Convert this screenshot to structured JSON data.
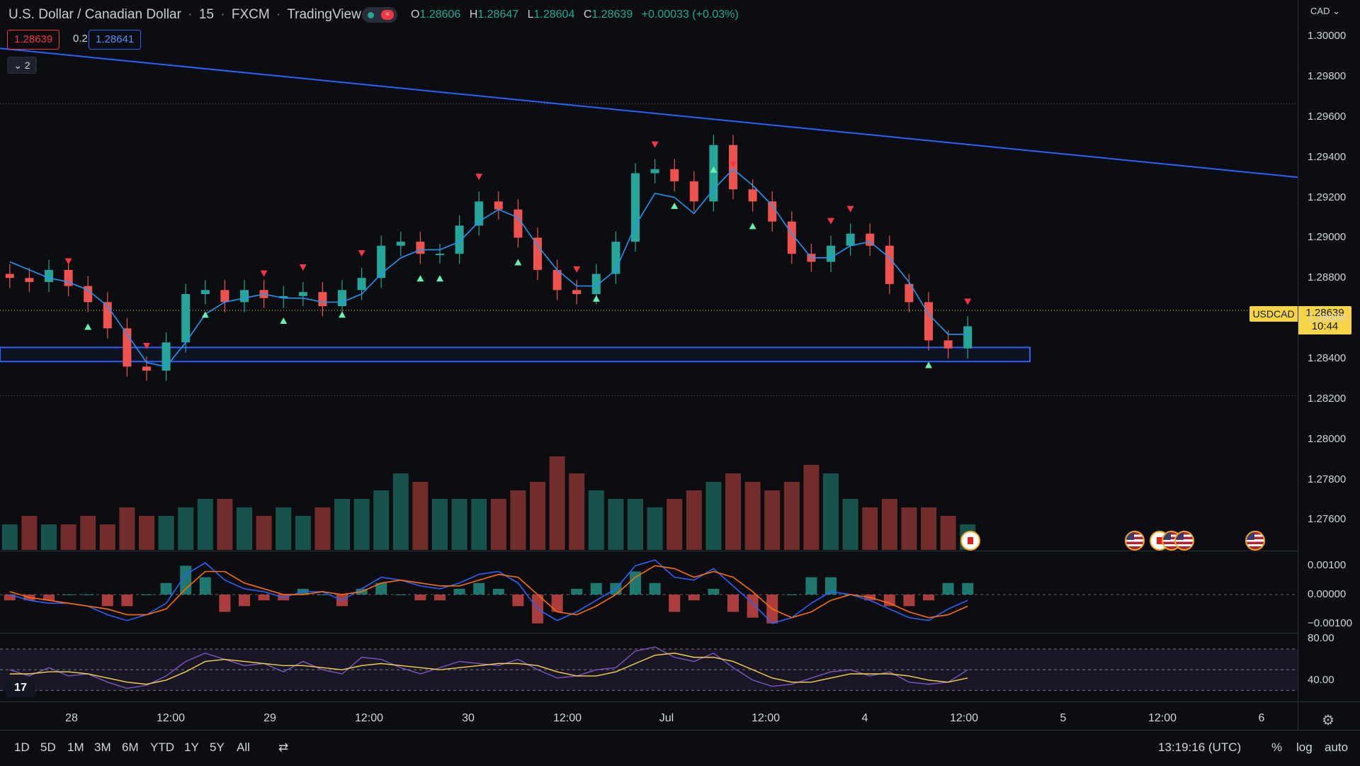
{
  "header": {
    "title": "U.S. Dollar / Canadian Dollar",
    "interval": "15",
    "exchange": "FXCM",
    "source": "TradingView",
    "ohlc": {
      "o_label": "O",
      "o": "1.28606",
      "h_label": "H",
      "h": "1.28647",
      "l_label": "L",
      "l": "1.28604",
      "c_label": "C",
      "c": "1.28639",
      "change": "+0.00033 (+0.03%)"
    },
    "sell_price": "1.28639",
    "spread": "0.2",
    "buy_price": "1.28641",
    "collapse_label": "2",
    "currency": "CAD"
  },
  "last_price": {
    "symbol": "USDCAD",
    "price": "1.28639",
    "countdown": "10:44"
  },
  "colors": {
    "up": "#26a69a",
    "down": "#ef5350",
    "ma": "#2196f3",
    "trendline": "#2962ff",
    "zone": "#2962ff",
    "macd": "#2962ff",
    "signal": "#ff6d00",
    "rsi": "#7e57c2",
    "rsi_ma": "#f5d547",
    "last_price": "#f5d547"
  },
  "chart_data": [
    {
      "type": "line",
      "title": "",
      "series": [
        {
          "y": [
            1.288,
            1.2878,
            1.2884,
            1.2876,
            1.2868,
            1.2855,
            1.2836,
            1.2834,
            1.2848,
            1.2872,
            1.2874,
            1.2868,
            1.2874,
            1.287,
            1.2871,
            1.2873,
            1.2866,
            1.2874,
            1.288,
            1.2896,
            1.2898,
            1.2892,
            1.2892,
            1.2906,
            1.2918,
            1.2914,
            1.29,
            1.2884,
            1.2874,
            1.2872,
            1.2882,
            1.2898,
            1.2932,
            1.2934,
            1.2928,
            1.2918,
            1.2946,
            1.2924,
            1.2918,
            1.2908,
            1.2892,
            1.2888,
            1.2896,
            1.2902,
            1.2896,
            1.2877,
            1.2868,
            1.2849,
            1.2845,
            1.2856
          ]
        },
        {
          "y": [
            1.2888,
            1.2884,
            1.288,
            1.2878,
            1.2874,
            1.2866,
            1.2852,
            1.2838,
            1.2836,
            1.2848,
            1.2862,
            1.2868,
            1.287,
            1.2872,
            1.287,
            1.287,
            1.2868,
            1.2868,
            1.2872,
            1.2882,
            1.289,
            1.2894,
            1.2894,
            1.2898,
            1.2908,
            1.2914,
            1.291,
            1.2896,
            1.2884,
            1.2876,
            1.2876,
            1.2884,
            1.2906,
            1.2922,
            1.292,
            1.2912,
            1.2924,
            1.2934,
            1.2926,
            1.2916,
            1.2902,
            1.289,
            1.289,
            1.2896,
            1.2898,
            1.289,
            1.2878,
            1.2862,
            1.2852,
            1.2852
          ]
        },
        {
          "x": [
            0,
            100
          ],
          "y": [
            1.2994,
            1.293
          ]
        }
      ],
      "support_zone": [
        1.28385,
        1.28455
      ],
      "dotted_levels": [
        1.29665,
        1.28639,
        1.28215
      ],
      "sell_signals_idx": [
        3,
        7,
        13,
        15,
        18,
        24,
        29,
        33,
        37,
        42,
        43,
        49
      ],
      "buy_signals_idx": [
        4,
        10,
        14,
        17,
        21,
        22,
        26,
        30,
        34,
        36,
        38,
        47
      ],
      "ylim": [
        1.2745,
        1.3018
      ],
      "y_ticks": [
        "1.30000",
        "1.29800",
        "1.29600",
        "1.29400",
        "1.29200",
        "1.29000",
        "1.28800",
        "1.28600",
        "1.28400",
        "1.28200",
        "1.28000",
        "1.27800",
        "1.27600"
      ]
    },
    {
      "type": "bar",
      "title": "",
      "values": [
        3,
        4,
        3,
        3,
        4,
        3,
        5,
        4,
        4,
        5,
        6,
        6,
        5,
        4,
        5,
        4,
        5,
        6,
        6,
        7,
        9,
        8,
        6,
        6,
        6,
        6,
        7,
        8,
        11,
        9,
        7,
        6,
        6,
        5,
        6,
        7,
        8,
        9,
        8,
        7,
        8,
        10,
        9,
        6,
        5,
        6,
        5,
        5,
        4,
        3
      ]
    },
    {
      "type": "line",
      "title": "",
      "series": [
        {
          "y": [
            0.0,
            -0.0002,
            -0.0003,
            -0.0003,
            -0.0004,
            -0.0007,
            -0.0009,
            -0.0007,
            -0.0003,
            0.0007,
            0.0011,
            0.0005,
            0.0002,
            0.0001,
            -0.0001,
            0.0001,
            0.0001,
            -0.0002,
            0.0002,
            0.0006,
            0.0005,
            0.0003,
            0.0002,
            0.0004,
            0.0007,
            0.0008,
            0.0004,
            -0.0005,
            -0.0009,
            -0.0006,
            -0.0002,
            0.0002,
            0.001,
            0.0012,
            0.0006,
            0.0005,
            0.0009,
            0.0003,
            -0.0003,
            -0.001,
            -0.0008,
            -0.0003,
            0.0001,
            0.0,
            -0.0002,
            -0.0005,
            -0.0008,
            -0.0009,
            -0.0005,
            -0.0002
          ]
        },
        {
          "y": [
            0.0001,
            -0.0001,
            -0.0002,
            -0.0003,
            -0.0004,
            -0.0005,
            -0.0007,
            -0.0007,
            -0.0005,
            0.0002,
            0.0008,
            0.0008,
            0.0004,
            0.0002,
            0.0,
            0.0,
            0.0001,
            0.0,
            0.0001,
            0.0004,
            0.0005,
            0.0004,
            0.0003,
            0.0003,
            0.0005,
            0.0007,
            0.0006,
            0.0,
            -0.0006,
            -0.0007,
            -0.0004,
            0.0,
            0.0006,
            0.001,
            0.0009,
            0.0006,
            0.0008,
            0.0006,
            0.0001,
            -0.0005,
            -0.0008,
            -0.0006,
            -0.0002,
            0.0,
            -0.0001,
            -0.0003,
            -0.0006,
            -0.0008,
            -0.0007,
            -0.0004
          ]
        }
      ],
      "ylim": [
        -0.0013,
        0.0015
      ],
      "y_ticks": [
        "0.00100",
        "0.00000",
        "−0.00100"
      ]
    },
    {
      "type": "line",
      "title": "",
      "series": [
        {
          "y": [
            50,
            44,
            52,
            44,
            46,
            38,
            32,
            35,
            44,
            58,
            66,
            60,
            54,
            56,
            48,
            58,
            50,
            46,
            62,
            60,
            52,
            46,
            52,
            58,
            56,
            54,
            60,
            50,
            42,
            44,
            50,
            52,
            68,
            72,
            62,
            58,
            66,
            52,
            40,
            34,
            36,
            42,
            48,
            50,
            44,
            48,
            38,
            36,
            38,
            50
          ]
        },
        {
          "y": [
            46,
            46,
            48,
            48,
            46,
            42,
            38,
            36,
            40,
            48,
            58,
            60,
            58,
            56,
            54,
            54,
            52,
            50,
            54,
            56,
            54,
            52,
            50,
            52,
            54,
            56,
            56,
            54,
            48,
            44,
            44,
            48,
            56,
            64,
            66,
            62,
            62,
            58,
            50,
            42,
            38,
            38,
            42,
            46,
            46,
            46,
            44,
            40,
            38,
            42
          ]
        }
      ],
      "ylim": [
        20,
        85
      ],
      "y_ticks": [
        "80.00",
        "40.00"
      ],
      "band": [
        30,
        70
      ]
    }
  ],
  "x_axis": {
    "labels": [
      "28",
      "12:00",
      "29",
      "12:00",
      "30",
      "12:00",
      "Jul",
      "12:00",
      "4",
      "12:00",
      "5",
      "12:00",
      "6"
    ]
  },
  "events": {
    "flags": [
      "ca",
      "us",
      "ca",
      "us",
      "us",
      "us"
    ]
  },
  "bottom": {
    "ranges": [
      "1D",
      "5D",
      "1M",
      "3M",
      "6M",
      "YTD",
      "1Y",
      "5Y",
      "All"
    ],
    "clock": "13:19:16 (UTC)",
    "percent": "%",
    "log": "log",
    "auto": "auto"
  },
  "logo_text": "17"
}
